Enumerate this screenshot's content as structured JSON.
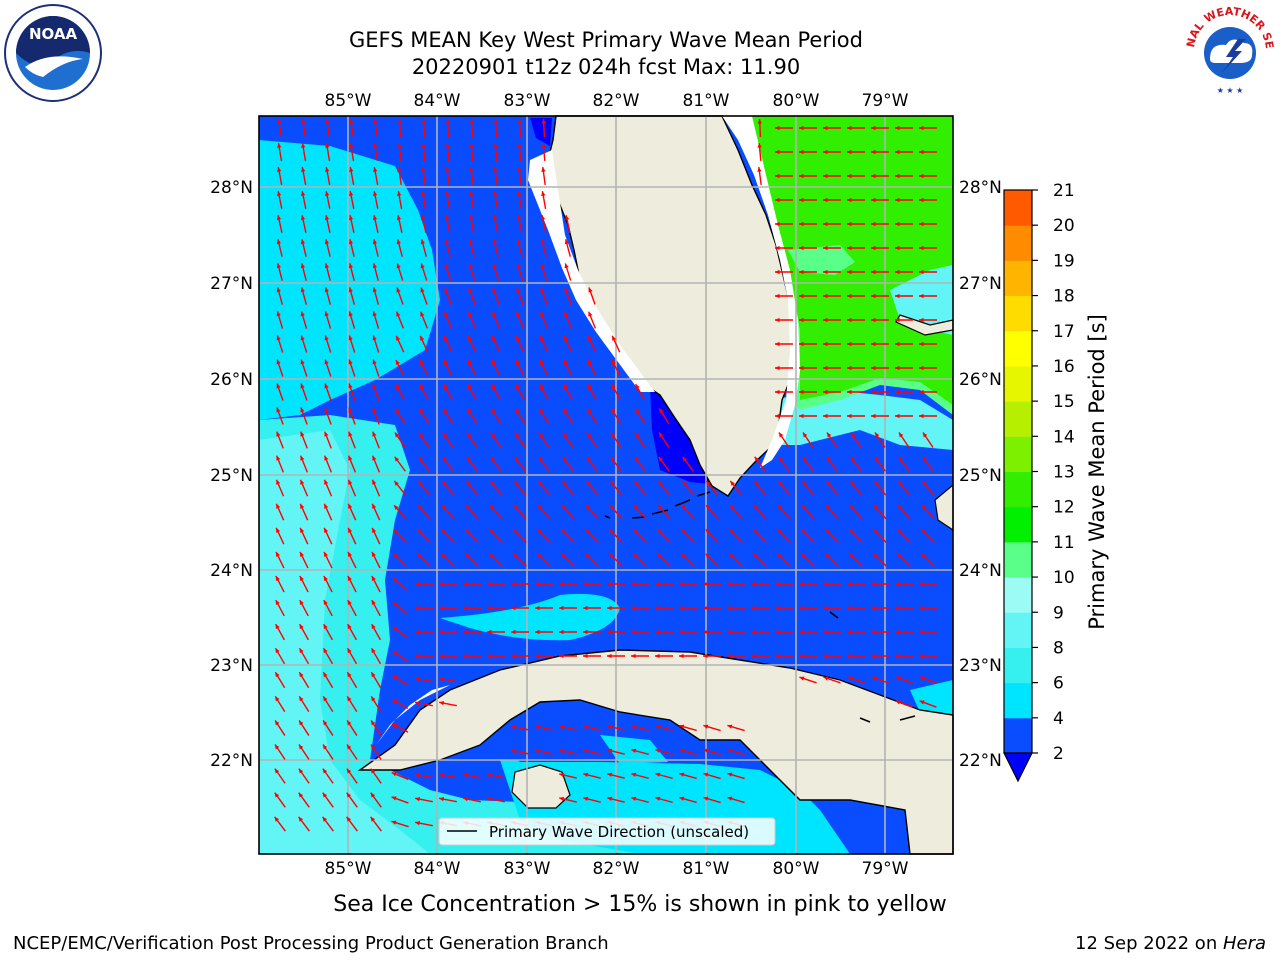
{
  "title": {
    "line1": "GEFS MEAN Key West Primary Wave Mean Period",
    "line2": "20220901 t12z 024h fcst   Max: 11.90"
  },
  "map": {
    "lon_labels": [
      "85°W",
      "84°W",
      "83°W",
      "82°W",
      "81°W",
      "80°W",
      "79°W"
    ],
    "lat_labels": [
      "28°N",
      "27°N",
      "26°N",
      "25°N",
      "24°N",
      "23°N",
      "22°N"
    ],
    "legend_label": "Primary Wave Direction (unscaled)",
    "arrow_color": "#ff0000",
    "land_color": "#eeecdc"
  },
  "colorbar": {
    "label": "Primary Wave Mean Period [s]",
    "ticks": [
      "2",
      "4",
      "6",
      "8",
      "9",
      "10",
      "11",
      "12",
      "13",
      "14",
      "15",
      "16",
      "17",
      "18",
      "19",
      "20",
      "21"
    ],
    "colors": [
      "#0a4cff",
      "#00e5ff",
      "#36f0f0",
      "#63f5f5",
      "#9dfbf5",
      "#5aff8a",
      "#00f000",
      "#32ee00",
      "#7df000",
      "#b6f000",
      "#e6f500",
      "#ffff00",
      "#ffdc00",
      "#ffb400",
      "#ff8c00",
      "#ff5a00",
      "#ff2800",
      "#ff0000"
    ],
    "under_color": "#0000ff"
  },
  "caption": "Sea Ice Concentration > 15% is shown in pink to yellow",
  "footer": {
    "left": "NCEP/EMC/Verification Post Processing Product Generation Branch",
    "right_date": "12 Sep 2022 on ",
    "right_host": "Hera"
  },
  "logos": {
    "noaa_text": "NOAA",
    "nws_text": "NATIONAL WEATHER SERVICE"
  }
}
